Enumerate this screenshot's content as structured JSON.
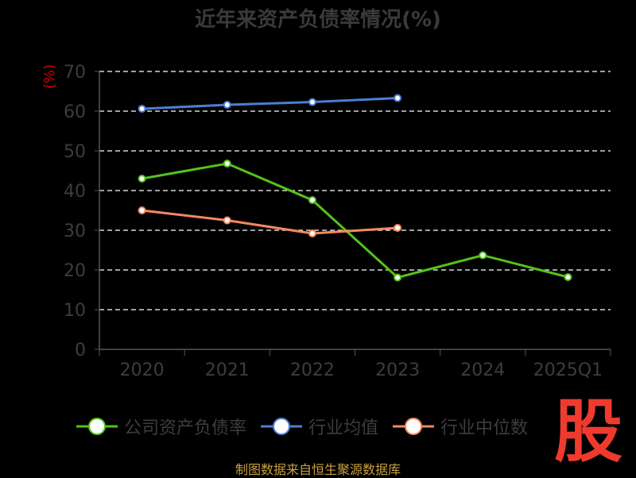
{
  "chart_data": {
    "type": "line",
    "title": "近年来资产负债率情况(%)",
    "ylabel": "(%)",
    "xlabel": "",
    "categories": [
      "2020",
      "2021",
      "2022",
      "2023",
      "2024",
      "2025Q1"
    ],
    "ylim": [
      0,
      70
    ],
    "yticks": [
      0,
      10,
      20,
      30,
      40,
      50,
      60,
      70
    ],
    "grid": true,
    "legend_position": "bottom",
    "series": [
      {
        "name": "公司资产负债率",
        "color": "#52c41a",
        "values": [
          43.0,
          46.8,
          37.6,
          18.1,
          23.7,
          18.2
        ]
      },
      {
        "name": "行业均值",
        "color": "#4a7fd4",
        "values": [
          60.6,
          61.6,
          62.3,
          63.3,
          null,
          null
        ]
      },
      {
        "name": "行业中位数",
        "color": "#f4895f",
        "values": [
          35.0,
          32.5,
          29.2,
          30.6,
          null,
          null
        ]
      }
    ]
  },
  "logo": {
    "text": "股"
  },
  "source": "制图数据来自恒生聚源数据库"
}
